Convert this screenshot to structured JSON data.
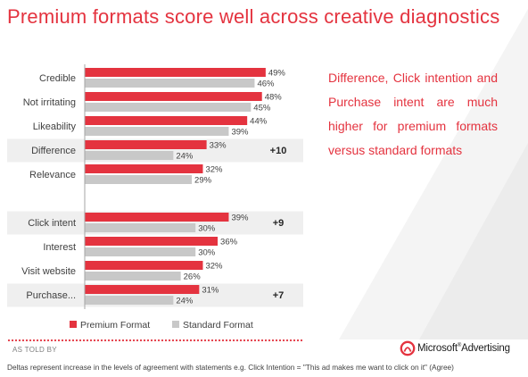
{
  "title": "Premium formats score well across creative diagnostics",
  "note": "Difference, Click intention and Purchase intent are much higher for premium formats versus standard formats",
  "told_by": "AS TOLD BY",
  "brand": {
    "name": "Microsoft",
    "suffix": "Advertising",
    "mark": "ribbon-logo-icon"
  },
  "footnote": "Deltas represent increase in the levels of agreement with statements e.g. Click Intention = \"This ad makes me want to click on it\" (Agree)",
  "colors": {
    "premium": "#e4333f",
    "standard": "#c8c8c8",
    "highlight": "#efefef",
    "title": "#e4333f"
  },
  "chart_data": {
    "type": "bar",
    "orientation": "horizontal",
    "categories": [
      "Credible",
      "Not irritating",
      "Likeability",
      "Difference",
      "Relevance",
      "Click intent",
      "Interest",
      "Visit website",
      "Purchase..."
    ],
    "series": [
      {
        "name": "Premium Format",
        "values": [
          49,
          48,
          44,
          33,
          32,
          39,
          36,
          32,
          31
        ],
        "labels": [
          "49%",
          "48%",
          "44%",
          "33%",
          "32%",
          "39%",
          "36%",
          "32%",
          "31%"
        ]
      },
      {
        "name": "Standard Format",
        "values": [
          46,
          45,
          39,
          24,
          29,
          30,
          30,
          26,
          24
        ],
        "labels": [
          "46%",
          "45%",
          "39%",
          "24%",
          "29%",
          "30%",
          "30%",
          "26%",
          "24%"
        ]
      }
    ],
    "deltas": [
      "",
      "",
      "",
      "+10",
      "",
      "+9",
      "",
      "",
      "+7"
    ],
    "highlighted": [
      false,
      false,
      false,
      true,
      false,
      true,
      false,
      false,
      true
    ],
    "xlim": [
      0,
      60
    ],
    "legend": "bottom",
    "grid": false
  }
}
